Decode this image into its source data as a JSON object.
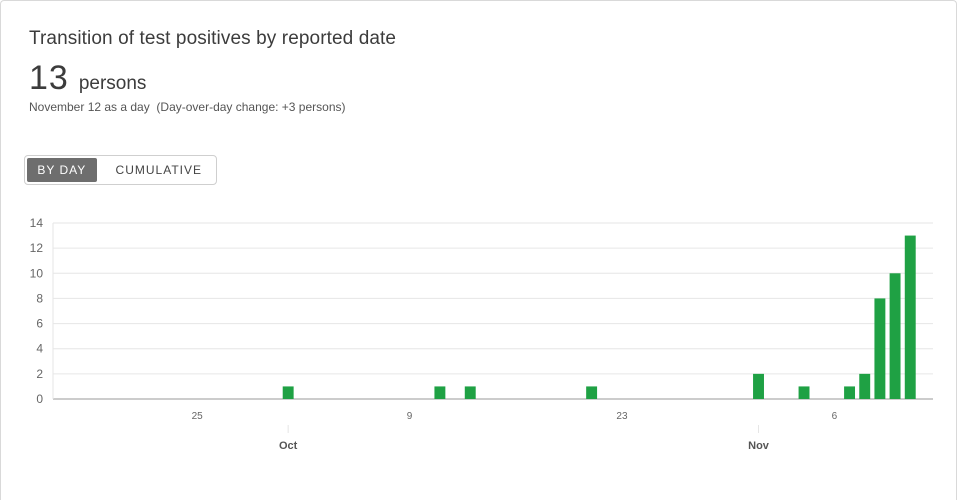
{
  "card": {
    "title": "Transition of test positives by reported date",
    "value": "13",
    "unit": "persons",
    "note": "November 12 as a day  (Day-over-day change: +3 persons)"
  },
  "toggle": {
    "by_day": "BY DAY",
    "cumulative": "CUMULATIVE"
  },
  "colors": {
    "bar": "#1fa144",
    "grid": "#e6e6e6",
    "axis": "#9a9a9a"
  },
  "chart_data": {
    "type": "bar",
    "x_start": "2020-09-16",
    "x_end": "2020-11-12",
    "ylim": [
      0,
      14
    ],
    "yticks": [
      0,
      2,
      4,
      6,
      8,
      10,
      12,
      14
    ],
    "x_tick_labels": [
      {
        "date": "2020-09-25",
        "label": "25"
      },
      {
        "date": "2020-10-09",
        "label": "9"
      },
      {
        "date": "2020-10-23",
        "label": "23"
      },
      {
        "date": "2020-11-06",
        "label": "6"
      }
    ],
    "month_labels": [
      {
        "date": "2020-10-01",
        "label": "Oct"
      },
      {
        "date": "2020-11-01",
        "label": "Nov"
      }
    ],
    "bars": [
      {
        "date": "2020-10-01",
        "value": 1
      },
      {
        "date": "2020-10-11",
        "value": 1
      },
      {
        "date": "2020-10-13",
        "value": 1
      },
      {
        "date": "2020-10-21",
        "value": 1
      },
      {
        "date": "2020-11-01",
        "value": 2
      },
      {
        "date": "2020-11-04",
        "value": 1
      },
      {
        "date": "2020-11-07",
        "value": 1
      },
      {
        "date": "2020-11-08",
        "value": 2
      },
      {
        "date": "2020-11-09",
        "value": 8
      },
      {
        "date": "2020-11-10",
        "value": 10
      },
      {
        "date": "2020-11-11",
        "value": 13
      }
    ]
  }
}
